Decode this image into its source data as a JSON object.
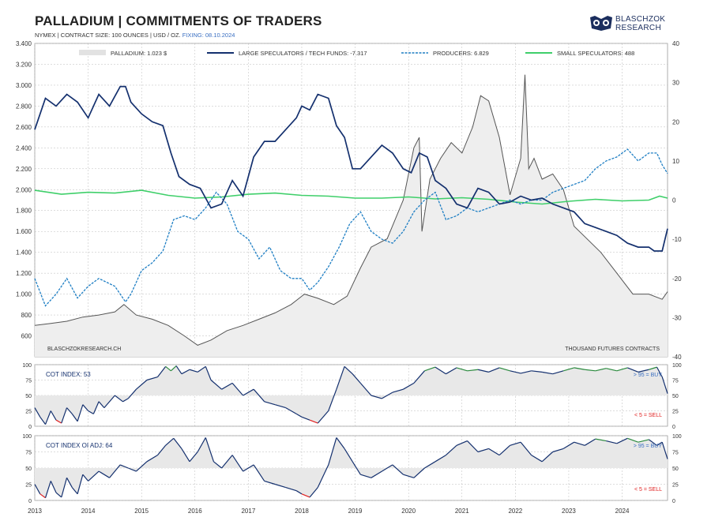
{
  "title": "PALLADIUM  |  COMMITMENTS OF TRADERS",
  "subtitle": "NYMEX | CONTRACT SIZE: 100 OUNCES | USD / OZ.",
  "fixing": "FIXING: 08.10.2024",
  "brand": {
    "line1": "BLASCHZOK",
    "line2": "RESEARCH"
  },
  "colors": {
    "price": "#555555",
    "price_fill": "#eeeeee",
    "large_spec": "#14306e",
    "producers": "#1f7fc4",
    "small_spec": "#3fcf6a",
    "buy": "#2b8a3e",
    "sell": "#e02020",
    "grid": "#bbbbbb"
  },
  "chart_data": [
    {
      "type": "line",
      "name": "main",
      "legend": [
        "PALLADIUM: 1.023 $",
        "LARGE SPECULATORS / TECH FUNDS: -7.317",
        "PRODUCERS: 6.829",
        "SMALL SPECULATORS: 488"
      ],
      "left_axis": {
        "ticks": [
          "600",
          "800",
          "1.000",
          "1.200",
          "1.400",
          "1.600",
          "1.800",
          "2.000",
          "2.200",
          "2.400",
          "2.600",
          "2.800",
          "3.000",
          "3.200",
          "3.400"
        ],
        "ylim": [
          400,
          3400
        ]
      },
      "right_axis": {
        "ticks": [
          "-40",
          "-30",
          "-20",
          "-10",
          "0",
          "10",
          "20",
          "30",
          "40"
        ],
        "ylim": [
          -40,
          40
        ]
      },
      "x_ticks": [
        "2013",
        "2014",
        "2015",
        "2016",
        "2017",
        "2018",
        "2019",
        "2020",
        "2021",
        "2022",
        "2023",
        "2024"
      ],
      "x_range": [
        2013.0,
        2024.85
      ],
      "annotation_left": "BLASCHZOKRESEARCH.CH",
      "annotation_right": "THOUSAND  FUTURES CONTRACTS",
      "series": [
        {
          "key": "price",
          "axis": "left",
          "x": [
            2013.0,
            2013.3,
            2013.6,
            2013.9,
            2014.2,
            2014.5,
            2014.67,
            2014.9,
            2015.2,
            2015.5,
            2015.8,
            2016.05,
            2016.3,
            2016.6,
            2016.9,
            2017.2,
            2017.5,
            2017.8,
            2018.05,
            2018.3,
            2018.6,
            2018.85,
            2019.1,
            2019.3,
            2019.6,
            2019.9,
            2020.1,
            2020.2,
            2020.25,
            2020.4,
            2020.6,
            2020.8,
            2021.0,
            2021.2,
            2021.35,
            2021.5,
            2021.7,
            2021.9,
            2022.1,
            2022.18,
            2022.25,
            2022.35,
            2022.5,
            2022.7,
            2022.9,
            2023.1,
            2023.3,
            2023.6,
            2023.9,
            2024.2,
            2024.5,
            2024.75,
            2024.85
          ],
          "y": [
            700,
            720,
            740,
            780,
            800,
            830,
            900,
            800,
            760,
            700,
            600,
            510,
            560,
            650,
            700,
            760,
            820,
            900,
            1000,
            960,
            900,
            980,
            1250,
            1450,
            1530,
            1900,
            2400,
            2500,
            1600,
            2100,
            2300,
            2450,
            2350,
            2600,
            2900,
            2850,
            2500,
            1950,
            2300,
            3100,
            2200,
            2300,
            2100,
            2150,
            2000,
            1650,
            1550,
            1400,
            1200,
            1000,
            1000,
            950,
            1023
          ]
        },
        {
          "key": "large_spec",
          "axis": "right",
          "x": [
            2013.0,
            2013.2,
            2013.4,
            2013.6,
            2013.8,
            2014.0,
            2014.2,
            2014.4,
            2014.6,
            2014.7,
            2014.8,
            2015.0,
            2015.2,
            2015.4,
            2015.55,
            2015.7,
            2015.9,
            2016.1,
            2016.3,
            2016.5,
            2016.7,
            2016.9,
            2017.1,
            2017.3,
            2017.5,
            2017.7,
            2017.9,
            2018.0,
            2018.15,
            2018.3,
            2018.5,
            2018.65,
            2018.8,
            2018.95,
            2019.1,
            2019.3,
            2019.5,
            2019.7,
            2019.9,
            2020.05,
            2020.2,
            2020.35,
            2020.5,
            2020.7,
            2020.9,
            2021.1,
            2021.3,
            2021.5,
            2021.7,
            2021.9,
            2022.1,
            2022.3,
            2022.5,
            2022.7,
            2022.9,
            2023.1,
            2023.3,
            2023.5,
            2023.7,
            2023.9,
            2024.1,
            2024.3,
            2024.5,
            2024.6,
            2024.75,
            2024.85
          ],
          "y": [
            18,
            26,
            24,
            27,
            25,
            21,
            27,
            24,
            29,
            29,
            25,
            22,
            20,
            19,
            12,
            6,
            4,
            3,
            -2,
            -1,
            5,
            1,
            11,
            15,
            15,
            18,
            21,
            24,
            23,
            27,
            26,
            19,
            16,
            8,
            8,
            11,
            14,
            12,
            8,
            7,
            12,
            11,
            5,
            3,
            -1,
            -2,
            3,
            2,
            -1,
            -0.5,
            1,
            0,
            0.5,
            -1,
            -2,
            -3,
            -6,
            -7,
            -8,
            -9,
            -11,
            -12,
            -12,
            -13,
            -13,
            -7.3
          ]
        },
        {
          "key": "producers",
          "axis": "right",
          "x": [
            2013.0,
            2013.2,
            2013.4,
            2013.6,
            2013.8,
            2014.0,
            2014.2,
            2014.5,
            2014.7,
            2014.8,
            2015.0,
            2015.2,
            2015.4,
            2015.6,
            2015.8,
            2016.0,
            2016.2,
            2016.4,
            2016.6,
            2016.8,
            2017.0,
            2017.2,
            2017.4,
            2017.6,
            2017.8,
            2018.0,
            2018.15,
            2018.3,
            2018.5,
            2018.7,
            2018.9,
            2019.1,
            2019.3,
            2019.5,
            2019.7,
            2019.9,
            2020.1,
            2020.3,
            2020.5,
            2020.7,
            2020.9,
            2021.1,
            2021.3,
            2021.5,
            2021.7,
            2021.9,
            2022.1,
            2022.3,
            2022.5,
            2022.7,
            2022.9,
            2023.1,
            2023.3,
            2023.5,
            2023.7,
            2023.9,
            2024.1,
            2024.3,
            2024.5,
            2024.65,
            2024.75,
            2024.85
          ],
          "y": [
            -20,
            -27,
            -24,
            -20,
            -25,
            -22,
            -20,
            -22,
            -26,
            -24,
            -18,
            -16,
            -13,
            -5,
            -4,
            -5,
            -2,
            2,
            -1,
            -8,
            -10,
            -15,
            -12,
            -18,
            -20,
            -20,
            -23,
            -21,
            -17,
            -12,
            -6,
            -3,
            -8,
            -10,
            -11,
            -8,
            -3,
            0,
            2,
            -5,
            -4,
            -2,
            -3,
            -2,
            -1,
            0,
            -1,
            0,
            0,
            2,
            3,
            4,
            5,
            8,
            10,
            11,
            13,
            10,
            12,
            12,
            9,
            6.8
          ]
        },
        {
          "key": "small_spec",
          "axis": "right",
          "x": [
            2013.0,
            2013.5,
            2014.0,
            2014.5,
            2015.0,
            2015.5,
            2016.0,
            2016.5,
            2017.0,
            2017.5,
            2018.0,
            2018.5,
            2019.0,
            2019.5,
            2020.0,
            2020.5,
            2021.0,
            2021.5,
            2022.0,
            2022.5,
            2023.0,
            2023.5,
            2024.0,
            2024.5,
            2024.7,
            2024.85
          ],
          "y": [
            2.5,
            1.5,
            2,
            1.8,
            2.5,
            1.2,
            0.5,
            0.8,
            1.5,
            1.8,
            1.2,
            1,
            0.5,
            0.5,
            0.8,
            0.3,
            0.6,
            0.2,
            -0.5,
            -1,
            -0.3,
            0.2,
            -0.2,
            0,
            1,
            0.5
          ]
        }
      ]
    },
    {
      "type": "line",
      "name": "cot-index",
      "label": "COT INDEX: 53",
      "buy_label": "> 95 = BUY",
      "sell_label": "< 5 = SELL",
      "y_ticks": [
        "0",
        "25",
        "50",
        "75",
        "100"
      ],
      "ylim": [
        0,
        100
      ],
      "x": [
        2013.0,
        2013.1,
        2013.2,
        2013.3,
        2013.4,
        2013.5,
        2013.6,
        2013.7,
        2013.8,
        2013.9,
        2014.0,
        2014.1,
        2014.2,
        2014.3,
        2014.5,
        2014.65,
        2014.75,
        2014.9,
        2015.1,
        2015.3,
        2015.45,
        2015.55,
        2015.65,
        2015.75,
        2015.9,
        2016.05,
        2016.2,
        2016.3,
        2016.5,
        2016.7,
        2016.9,
        2017.1,
        2017.3,
        2017.5,
        2017.7,
        2017.9,
        2018.0,
        2018.15,
        2018.3,
        2018.5,
        2018.65,
        2018.8,
        2018.95,
        2019.1,
        2019.3,
        2019.5,
        2019.7,
        2019.9,
        2020.1,
        2020.3,
        2020.5,
        2020.7,
        2020.9,
        2021.1,
        2021.3,
        2021.5,
        2021.7,
        2021.9,
        2022.1,
        2022.3,
        2022.5,
        2022.7,
        2022.9,
        2023.1,
        2023.3,
        2023.5,
        2023.7,
        2023.9,
        2024.1,
        2024.3,
        2024.5,
        2024.65,
        2024.75,
        2024.85
      ],
      "values": [
        30,
        15,
        3,
        25,
        10,
        5,
        30,
        20,
        8,
        35,
        25,
        20,
        40,
        30,
        50,
        40,
        45,
        60,
        75,
        80,
        97,
        90,
        98,
        85,
        92,
        88,
        97,
        75,
        60,
        70,
        50,
        60,
        40,
        35,
        30,
        20,
        15,
        10,
        5,
        25,
        60,
        97,
        85,
        70,
        50,
        45,
        55,
        60,
        70,
        90,
        96,
        85,
        95,
        90,
        92,
        88,
        95,
        90,
        86,
        90,
        88,
        85,
        90,
        95,
        92,
        90,
        94,
        90,
        95,
        88,
        92,
        96,
        80,
        53
      ]
    },
    {
      "type": "line",
      "name": "cot-index-oi-adj",
      "label": "COT INDEX OI ADJ: 64",
      "buy_label": "> 95 = BUY",
      "sell_label": "< 5 = SELL",
      "y_ticks": [
        "0",
        "25",
        "50",
        "75",
        "100"
      ],
      "ylim": [
        0,
        100
      ],
      "x": [
        2013.0,
        2013.1,
        2013.2,
        2013.3,
        2013.4,
        2013.5,
        2013.6,
        2013.7,
        2013.8,
        2013.9,
        2014.0,
        2014.2,
        2014.4,
        2014.6,
        2014.75,
        2014.9,
        2015.1,
        2015.3,
        2015.45,
        2015.6,
        2015.75,
        2015.9,
        2016.05,
        2016.2,
        2016.35,
        2016.5,
        2016.7,
        2016.9,
        2017.1,
        2017.3,
        2017.5,
        2017.7,
        2017.9,
        2018.0,
        2018.15,
        2018.3,
        2018.5,
        2018.65,
        2018.8,
        2018.95,
        2019.1,
        2019.3,
        2019.5,
        2019.7,
        2019.9,
        2020.1,
        2020.3,
        2020.5,
        2020.7,
        2020.9,
        2021.1,
        2021.3,
        2021.5,
        2021.7,
        2021.9,
        2022.1,
        2022.3,
        2022.5,
        2022.7,
        2022.9,
        2023.1,
        2023.3,
        2023.5,
        2023.7,
        2023.9,
        2024.1,
        2024.3,
        2024.5,
        2024.65,
        2024.75,
        2024.85
      ],
      "values": [
        25,
        10,
        4,
        30,
        12,
        5,
        35,
        20,
        10,
        40,
        30,
        45,
        35,
        55,
        50,
        45,
        60,
        70,
        85,
        96,
        80,
        60,
        75,
        97,
        60,
        50,
        70,
        45,
        55,
        30,
        25,
        20,
        15,
        10,
        5,
        20,
        55,
        97,
        80,
        60,
        40,
        35,
        45,
        55,
        40,
        35,
        50,
        60,
        70,
        85,
        92,
        75,
        80,
        70,
        85,
        90,
        70,
        60,
        75,
        80,
        90,
        85,
        95,
        92,
        88,
        96,
        90,
        94,
        85,
        90,
        64
      ]
    }
  ]
}
